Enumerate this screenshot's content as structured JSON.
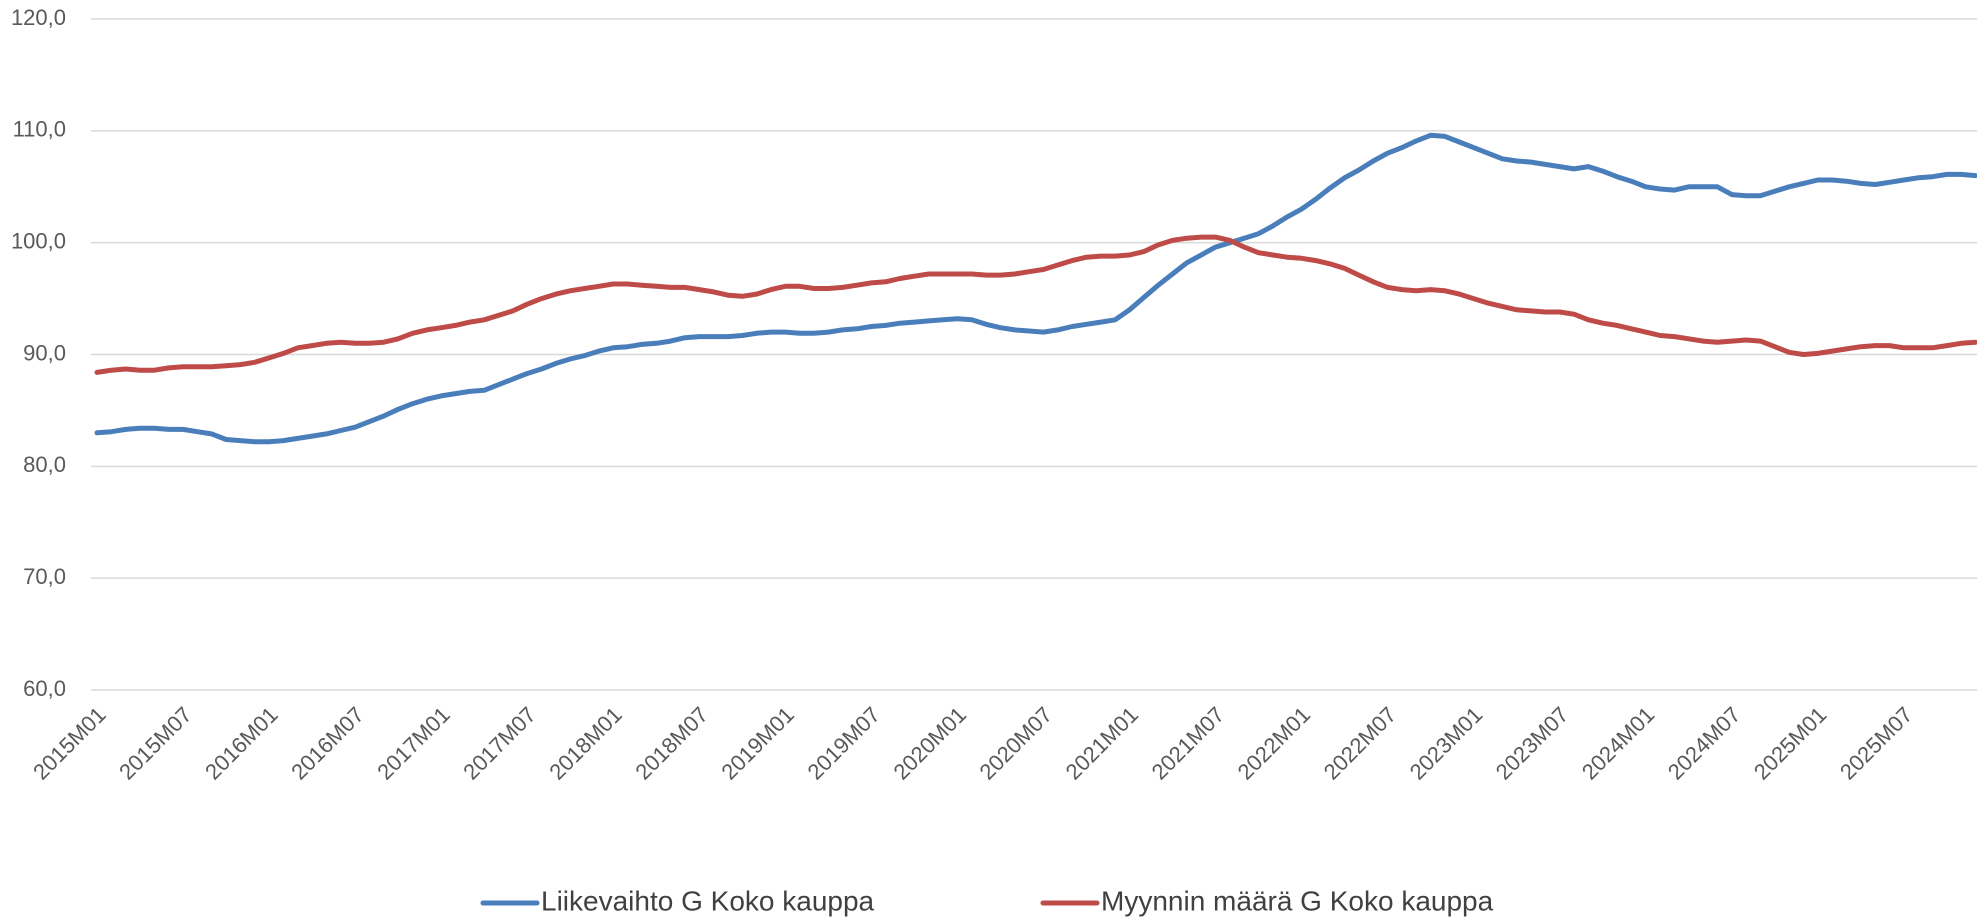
{
  "chart_data": {
    "type": "line",
    "categories": [
      "2015M01",
      null,
      null,
      null,
      null,
      null,
      "2015M07",
      null,
      null,
      null,
      null,
      null,
      "2016M01",
      null,
      null,
      null,
      null,
      null,
      "2016M07",
      null,
      null,
      null,
      null,
      null,
      "2017M01",
      null,
      null,
      null,
      null,
      null,
      "2017M07",
      null,
      null,
      null,
      null,
      null,
      "2018M01",
      null,
      null,
      null,
      null,
      null,
      "2018M07",
      null,
      null,
      null,
      null,
      null,
      "2019M01",
      null,
      null,
      null,
      null,
      null,
      "2019M07",
      null,
      null,
      null,
      null,
      null,
      "2020M01",
      null,
      null,
      null,
      null,
      null,
      "2020M07",
      null,
      null,
      null,
      null,
      null,
      "2021M01",
      null,
      null,
      null,
      null,
      null,
      "2021M07",
      null,
      null,
      null,
      null,
      null,
      "2022M01",
      null,
      null,
      null,
      null,
      null,
      "2022M07",
      null,
      null,
      null,
      null,
      null,
      "2023M01",
      null,
      null,
      null,
      null,
      null,
      "2023M07",
      null,
      null,
      null,
      null,
      null,
      "2024M01",
      null,
      null,
      null,
      null,
      null,
      "2024M07",
      null,
      null,
      null,
      null,
      null,
      "2025M01",
      null,
      null,
      null,
      null,
      null,
      "2025M07",
      null,
      null,
      null,
      null,
      null
    ],
    "series": [
      {
        "name": "Liikevaihto G Koko kauppa",
        "color": "#4a7ebb",
        "values": [
          83.0,
          83.1,
          83.3,
          83.4,
          83.4,
          83.3,
          83.3,
          83.1,
          82.9,
          82.4,
          82.3,
          82.2,
          82.2,
          82.3,
          82.5,
          82.7,
          82.9,
          83.2,
          83.5,
          84.0,
          84.5,
          85.1,
          85.6,
          86.0,
          86.3,
          86.5,
          86.7,
          86.8,
          87.3,
          87.8,
          88.3,
          88.7,
          89.2,
          89.6,
          89.9,
          90.3,
          90.6,
          90.7,
          90.9,
          91.0,
          91.2,
          91.5,
          91.6,
          91.6,
          91.6,
          91.7,
          91.9,
          92.0,
          92.0,
          91.9,
          91.9,
          92.0,
          92.2,
          92.3,
          92.5,
          92.6,
          92.8,
          92.9,
          93.0,
          93.1,
          93.2,
          93.1,
          92.7,
          92.4,
          92.2,
          92.1,
          92.0,
          92.2,
          92.5,
          92.7,
          92.9,
          93.1,
          94.0,
          95.1,
          96.2,
          97.2,
          98.2,
          98.9,
          99.6,
          100.0,
          100.4,
          100.8,
          101.5,
          102.3,
          103.0,
          103.9,
          104.9,
          105.8,
          106.5,
          107.3,
          108.0,
          108.5,
          109.1,
          109.6,
          109.5,
          109.0,
          108.5,
          108.0,
          107.5,
          107.3,
          107.2,
          107.0,
          106.8,
          106.6,
          106.8,
          106.4,
          105.9,
          105.5,
          105.0,
          104.8,
          104.7,
          105.0,
          105.0,
          105.0,
          104.3,
          104.2,
          104.2,
          104.6,
          105.0,
          105.3,
          105.6,
          105.6,
          105.5,
          105.3,
          105.2,
          105.4,
          105.6,
          105.8,
          105.9,
          106.1,
          106.1,
          106.0
        ]
      },
      {
        "name": "Myynnin määrä G Koko kauppa",
        "color": "#be4b48",
        "values": [
          88.4,
          88.6,
          88.7,
          88.6,
          88.6,
          88.8,
          88.9,
          88.9,
          88.9,
          89.0,
          89.1,
          89.3,
          89.7,
          90.1,
          90.6,
          90.8,
          91.0,
          91.1,
          91.0,
          91.0,
          91.1,
          91.4,
          91.9,
          92.2,
          92.4,
          92.6,
          92.9,
          93.1,
          93.5,
          93.9,
          94.5,
          95.0,
          95.4,
          95.7,
          95.9,
          96.1,
          96.3,
          96.3,
          96.2,
          96.1,
          96.0,
          96.0,
          95.8,
          95.6,
          95.3,
          95.2,
          95.4,
          95.8,
          96.1,
          96.1,
          95.9,
          95.9,
          96.0,
          96.2,
          96.4,
          96.5,
          96.8,
          97.0,
          97.2,
          97.2,
          97.2,
          97.2,
          97.1,
          97.1,
          97.2,
          97.4,
          97.6,
          98.0,
          98.4,
          98.7,
          98.8,
          98.8,
          98.9,
          99.2,
          99.8,
          100.2,
          100.4,
          100.5,
          100.5,
          100.2,
          99.6,
          99.1,
          98.9,
          98.7,
          98.6,
          98.4,
          98.1,
          97.7,
          97.1,
          96.5,
          96.0,
          95.8,
          95.7,
          95.8,
          95.7,
          95.4,
          95.0,
          94.6,
          94.3,
          94.0,
          93.9,
          93.8,
          93.8,
          93.6,
          93.1,
          92.8,
          92.6,
          92.3,
          92.0,
          91.7,
          91.6,
          91.4,
          91.2,
          91.1,
          91.2,
          91.3,
          91.2,
          90.7,
          90.2,
          90.0,
          90.1,
          90.3,
          90.5,
          90.7,
          90.8,
          90.8,
          90.6,
          90.6,
          90.6,
          90.8,
          91.0,
          91.1
        ]
      }
    ],
    "ylim": [
      60,
      120
    ],
    "yticks": [
      {
        "value": 60,
        "label": "60,0"
      },
      {
        "value": 70,
        "label": "70,0"
      },
      {
        "value": 80,
        "label": "80,0"
      },
      {
        "value": 90,
        "label": "90,0"
      },
      {
        "value": 100,
        "label": "100,0"
      },
      {
        "value": 110,
        "label": "110,0"
      },
      {
        "value": 120,
        "label": "120,0"
      }
    ],
    "grid": true,
    "legend": "bottom"
  }
}
